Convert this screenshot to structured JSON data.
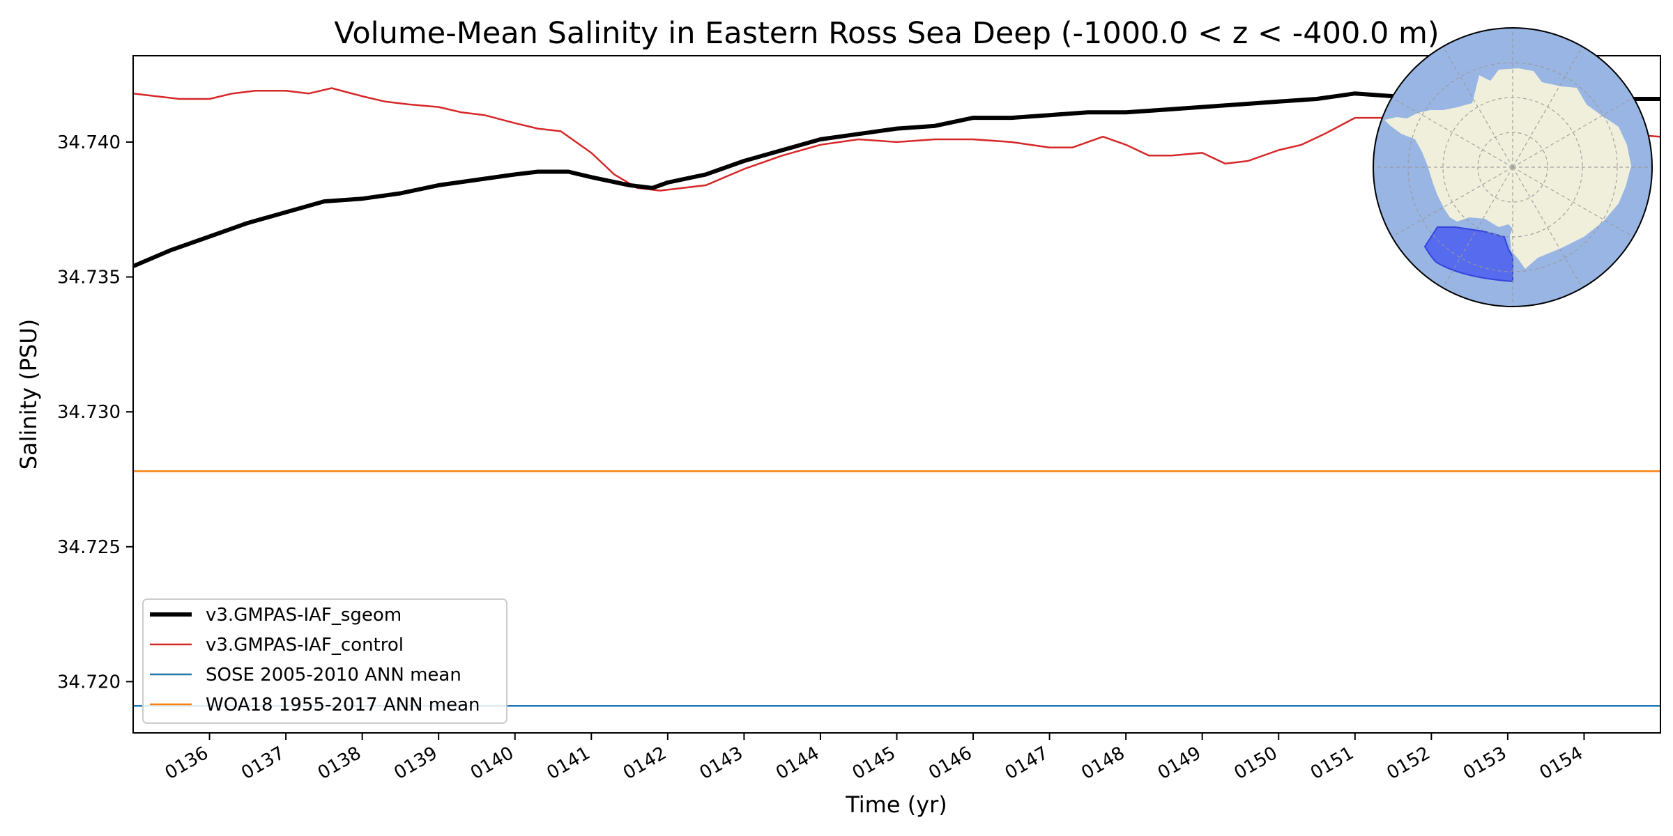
{
  "chart_data": {
    "type": "line",
    "title": "Volume-Mean Salinity in Eastern Ross Sea Deep (-1000.0 < z < -400.0 m)",
    "xlabel": "Time (yr)",
    "ylabel": "Salinity (PSU)",
    "xlim": [
      135.0,
      155.0
    ],
    "ylim": [
      34.7181,
      34.7432
    ],
    "xticks": [
      136,
      137,
      138,
      139,
      140,
      141,
      142,
      143,
      144,
      145,
      146,
      147,
      148,
      149,
      150,
      151,
      152,
      153,
      154
    ],
    "xtick_labels": [
      "0136",
      "0137",
      "0138",
      "0139",
      "0140",
      "0141",
      "0142",
      "0143",
      "0144",
      "0145",
      "0146",
      "0147",
      "0148",
      "0149",
      "0150",
      "0151",
      "0152",
      "0153",
      "0154"
    ],
    "yticks": [
      34.72,
      34.725,
      34.73,
      34.735,
      34.74
    ],
    "ytick_labels": [
      "34.720",
      "34.725",
      "34.730",
      "34.735",
      "34.740"
    ],
    "grid": false,
    "legend_position": "bottom-left",
    "series": [
      {
        "name": "v3.GMPAS-IAF_sgeom",
        "color": "#000000",
        "x": [
          135.0,
          135.5,
          136.0,
          136.5,
          137.0,
          137.5,
          138.0,
          138.5,
          139.0,
          139.5,
          140.0,
          140.3,
          140.7,
          141.0,
          141.5,
          141.8,
          142.0,
          142.5,
          143.0,
          143.5,
          144.0,
          144.5,
          145.0,
          145.5,
          146.0,
          146.5,
          147.0,
          147.5,
          148.0,
          148.5,
          149.0,
          149.5,
          150.0,
          150.5,
          151.0,
          151.5,
          152.0,
          152.5,
          153.0,
          153.5,
          154.0,
          154.5,
          155.0
        ],
        "values": [
          34.7354,
          34.736,
          34.7365,
          34.737,
          34.7374,
          34.7378,
          34.7379,
          34.7381,
          34.7384,
          34.7386,
          34.7388,
          34.7389,
          34.7389,
          34.7387,
          34.7384,
          34.7383,
          34.7385,
          34.7388,
          34.7393,
          34.7397,
          34.7401,
          34.7403,
          34.7405,
          34.7406,
          34.7409,
          34.7409,
          34.741,
          34.7411,
          34.7411,
          34.7412,
          34.7413,
          34.7414,
          34.7415,
          34.7416,
          34.7418,
          34.7417,
          34.7418,
          34.7417,
          34.7417,
          34.7417,
          34.7417,
          34.7416,
          34.7416
        ]
      },
      {
        "name": "v3.GMPAS-IAF_control",
        "color": "#d62728",
        "x": [
          135.0,
          135.3,
          135.6,
          136.0,
          136.3,
          136.6,
          137.0,
          137.3,
          137.6,
          138.0,
          138.3,
          138.6,
          139.0,
          139.3,
          139.6,
          140.0,
          140.3,
          140.6,
          141.0,
          141.3,
          141.6,
          141.9,
          142.2,
          142.5,
          143.0,
          143.5,
          144.0,
          144.5,
          145.0,
          145.5,
          146.0,
          146.5,
          147.0,
          147.3,
          147.7,
          148.0,
          148.3,
          148.6,
          149.0,
          149.3,
          149.6,
          150.0,
          150.3,
          150.6,
          151.0,
          151.5,
          152.0,
          152.5,
          153.0,
          153.5,
          154.0,
          154.5,
          155.0
        ],
        "values": [
          34.7418,
          34.7417,
          34.7416,
          34.7416,
          34.7418,
          34.7419,
          34.7419,
          34.7418,
          34.742,
          34.7417,
          34.7415,
          34.7414,
          34.7413,
          34.7411,
          34.741,
          34.7407,
          34.7405,
          34.7404,
          34.7396,
          34.7388,
          34.7383,
          34.7382,
          34.7383,
          34.7384,
          34.739,
          34.7395,
          34.7399,
          34.7401,
          34.74,
          34.7401,
          34.7401,
          34.74,
          34.7398,
          34.7398,
          34.7402,
          34.7399,
          34.7395,
          34.7395,
          34.7396,
          34.7392,
          34.7393,
          34.7397,
          34.7399,
          34.7403,
          34.7409,
          34.7409,
          34.7408,
          34.7408,
          34.7406,
          34.7406,
          34.7405,
          34.7403,
          34.7402
        ]
      },
      {
        "name": "SOSE 2005-2010 ANN mean",
        "color": "#1f77b4",
        "x": [
          135.0,
          155.0
        ],
        "values": [
          34.7191,
          34.7191
        ]
      },
      {
        "name": "WOA18 1955-2017 ANN mean",
        "color": "#ff7f0e",
        "x": [
          135.0,
          155.0
        ],
        "values": [
          34.7278,
          34.7278
        ]
      }
    ],
    "inset_map": {
      "projection": "south-polar-stereographic",
      "ocean_color": "#98b5e3",
      "land_color": "#efefdc",
      "region_color": "#4a5ef0",
      "region": "Eastern Ross Sea"
    }
  }
}
